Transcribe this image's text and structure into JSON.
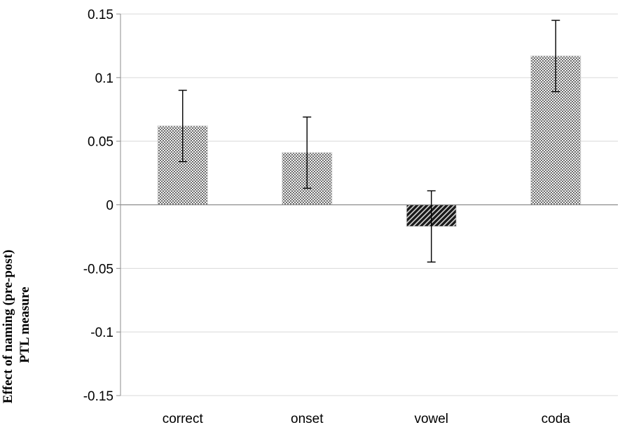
{
  "chart_data": {
    "type": "bar",
    "title": "",
    "xlabel": "",
    "ylabel_lines": [
      "Effect of naming (pre-post)",
      "PTL measure"
    ],
    "categories": [
      "correct",
      "onset",
      "vowel",
      "coda"
    ],
    "values": [
      0.062,
      0.041,
      -0.017,
      0.117
    ],
    "errors": [
      0.028,
      0.028,
      0.028,
      0.028
    ],
    "ylim": [
      -0.15,
      0.15
    ],
    "yticks": [
      -0.15,
      -0.1,
      -0.05,
      0,
      0.05,
      0.1,
      0.15
    ],
    "ytick_labels": [
      "-0.15",
      "-0.1",
      "-0.05",
      "0",
      "0.05",
      "0.1",
      "0.15"
    ],
    "grid": true,
    "bar_patterns": [
      "light-dots",
      "light-dots",
      "dark-diagonal",
      "light-dots"
    ]
  }
}
